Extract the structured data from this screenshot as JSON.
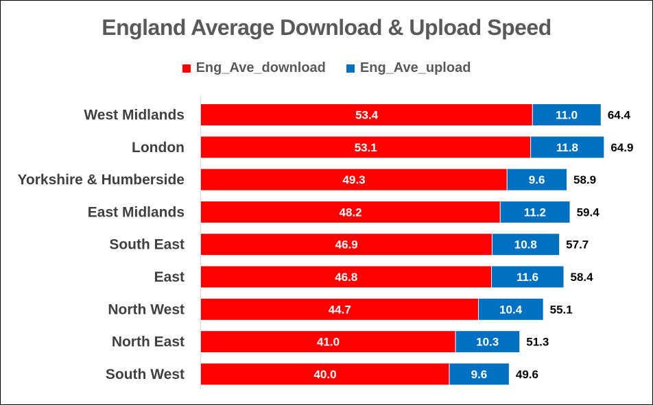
{
  "chart_data": {
    "type": "bar",
    "orientation": "horizontal",
    "stacked": true,
    "title": "England Average Download & Upload Speed",
    "categories": [
      "West Midlands",
      "London",
      "Yorkshire & Humberside",
      "East Midlands",
      "South East",
      "East",
      "North West",
      "North East",
      "South West"
    ],
    "series": [
      {
        "name": "Eng_Ave_download",
        "color": "#FF0000",
        "values": [
          53.4,
          53.1,
          49.3,
          48.2,
          46.9,
          46.8,
          44.7,
          41.0,
          40.0
        ]
      },
      {
        "name": "Eng_Ave_upload",
        "color": "#0070C0",
        "values": [
          11.0,
          11.8,
          9.6,
          11.2,
          10.8,
          11.6,
          10.4,
          10.3,
          9.6
        ]
      }
    ],
    "totals": [
      64.4,
      64.9,
      58.9,
      59.4,
      57.7,
      58.4,
      55.1,
      51.3,
      49.6
    ],
    "legend_position": "top",
    "grid": false,
    "xlim": [
      0,
      70
    ]
  }
}
